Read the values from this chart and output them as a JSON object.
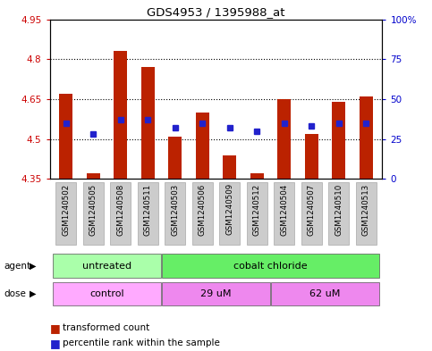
{
  "title": "GDS4953 / 1395988_at",
  "samples": [
    "GSM1240502",
    "GSM1240505",
    "GSM1240508",
    "GSM1240511",
    "GSM1240503",
    "GSM1240506",
    "GSM1240509",
    "GSM1240512",
    "GSM1240504",
    "GSM1240507",
    "GSM1240510",
    "GSM1240513"
  ],
  "transformed_count": [
    4.67,
    4.37,
    4.83,
    4.77,
    4.51,
    4.6,
    4.44,
    4.37,
    4.65,
    4.52,
    4.64,
    4.66
  ],
  "percentile_rank": [
    35,
    28,
    37,
    37,
    32,
    35,
    32,
    30,
    35,
    33,
    35,
    35
  ],
  "ymin": 4.35,
  "ymax": 4.95,
  "yticks": [
    4.35,
    4.5,
    4.65,
    4.8,
    4.95
  ],
  "ytick_labels": [
    "4.35",
    "4.5",
    "4.65",
    "4.8",
    "4.95"
  ],
  "right_yticks": [
    0,
    25,
    50,
    75,
    100
  ],
  "right_ytick_labels": [
    "0",
    "25",
    "50",
    "75",
    "100%"
  ],
  "bar_color": "#bb2200",
  "dot_color": "#2222cc",
  "agent_groups": [
    {
      "label": "untreated",
      "start": 0,
      "end": 4,
      "color": "#aaffaa"
    },
    {
      "label": "cobalt chloride",
      "start": 4,
      "end": 12,
      "color": "#66ee66"
    }
  ],
  "dose_groups": [
    {
      "label": "control",
      "start": 0,
      "end": 4,
      "color": "#ffaaff"
    },
    {
      "label": "29 uM",
      "start": 4,
      "end": 8,
      "color": "#ee88ee"
    },
    {
      "label": "62 uM",
      "start": 8,
      "end": 12,
      "color": "#ee88ee"
    }
  ],
  "legend_items": [
    {
      "label": "transformed count",
      "color": "#bb2200"
    },
    {
      "label": "percentile rank within the sample",
      "color": "#2222cc"
    }
  ],
  "left_axis_color": "#cc0000",
  "right_axis_color": "#0000cc",
  "bg_color": "#ffffff",
  "plot_bg_color": "#ffffff",
  "bar_width": 0.5,
  "agent_label": "agent",
  "dose_label": "dose",
  "grid_dotted_at": [
    4.5,
    4.65,
    4.8
  ]
}
